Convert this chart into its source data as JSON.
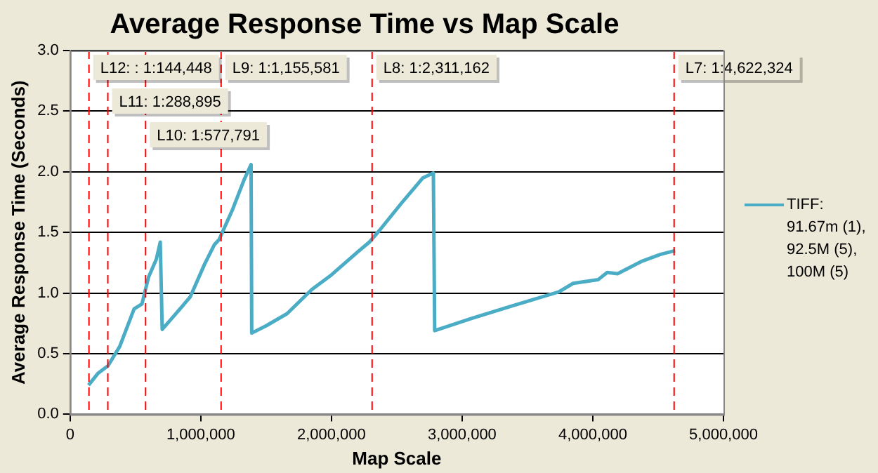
{
  "chart_data": {
    "type": "line",
    "title": "Average Response Time vs Map Scale",
    "xlabel": "Map Scale",
    "ylabel": "Average Response Time (Seconds)",
    "xlim": [
      0,
      5000000
    ],
    "xticks": [
      {
        "value": 0,
        "label": "0"
      },
      {
        "value": 1000000,
        "label": "1,000,000"
      },
      {
        "value": 2000000,
        "label": "2,000,000"
      },
      {
        "value": 3000000,
        "label": "3,000,000"
      },
      {
        "value": 4000000,
        "label": "4,000,000"
      },
      {
        "value": 5000000,
        "label": "5,000,000"
      }
    ],
    "ylim": [
      0,
      3
    ],
    "yticks": [
      {
        "value": 0,
        "label": "0.0"
      },
      {
        "value": 0.5,
        "label": "0.5"
      },
      {
        "value": 1,
        "label": "1.0"
      },
      {
        "value": 1.5,
        "label": "1.5"
      },
      {
        "value": 2,
        "label": "2.0"
      },
      {
        "value": 2.5,
        "label": "2.5"
      },
      {
        "value": 3,
        "label": "3.0"
      }
    ],
    "grid": "y",
    "legend": "right",
    "marker": "none",
    "line_style": "solid",
    "series": [
      {
        "name": "TIFF: 91.67m (1), 92.5M (5), 100M (5)",
        "color": "#4bacc6",
        "x": [
          141000,
          215000,
          290000,
          380000,
          490000,
          550000,
          600000,
          660000,
          690000,
          705000,
          810000,
          920000,
          1030000,
          1105000,
          1140000,
          1240000,
          1330000,
          1385000,
          1390000,
          1500000,
          1660000,
          1850000,
          2000000,
          2180000,
          2290000,
          2370000,
          2550000,
          2700000,
          2780000,
          2790000,
          3070000,
          3370000,
          3740000,
          3850000,
          4040000,
          4110000,
          4190000,
          4370000,
          4520000,
          4630000
        ],
        "values": [
          0.24,
          0.34,
          0.4,
          0.56,
          0.87,
          0.91,
          1.13,
          1.28,
          1.42,
          0.7,
          0.83,
          0.97,
          1.24,
          1.4,
          1.44,
          1.68,
          1.93,
          2.06,
          0.67,
          0.73,
          0.83,
          1.03,
          1.15,
          1.32,
          1.42,
          1.52,
          1.76,
          1.95,
          1.99,
          0.69,
          0.79,
          0.89,
          1.01,
          1.08,
          1.11,
          1.17,
          1.16,
          1.26,
          1.32,
          1.35
        ]
      }
    ],
    "ref_lines": [
      {
        "axis": "x",
        "value": 144448,
        "label": "L12: : 1:144,448",
        "color": "#ff0000",
        "line_style": "dashed"
      },
      {
        "axis": "x",
        "value": 288895,
        "label": "L11: 1:288,895",
        "color": "#ff0000",
        "line_style": "dashed"
      },
      {
        "axis": "x",
        "value": 577791,
        "label": "L10: 1:577,791",
        "color": "#ff0000",
        "line_style": "dashed"
      },
      {
        "axis": "x",
        "value": 1155581,
        "label": "L9: 1:1,155,581",
        "color": "#ff0000",
        "line_style": "dashed"
      },
      {
        "axis": "x",
        "value": 2311162,
        "label": "L8: 1:2,311,162",
        "color": "#ff0000",
        "line_style": "dashed"
      },
      {
        "axis": "x",
        "value": 4622324,
        "label": "L7: 1:4,622,324",
        "color": "#ff0000",
        "line_style": "dashed"
      }
    ]
  }
}
